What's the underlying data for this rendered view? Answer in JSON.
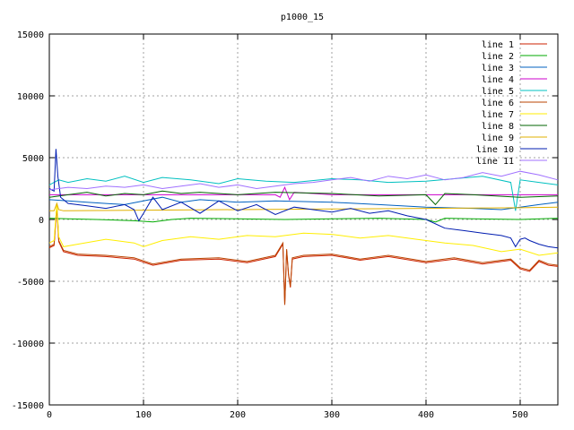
{
  "chart_data": {
    "type": "line",
    "title": "p1000_15",
    "xlabel": "",
    "ylabel": "",
    "xlim": [
      0,
      540
    ],
    "ylim": [
      -15000,
      15000
    ],
    "grid": true,
    "legend_position": "top-right",
    "x_ticks": [
      0,
      100,
      200,
      300,
      400,
      500
    ],
    "y_ticks": [
      -15000,
      -10000,
      -5000,
      0,
      5000,
      10000,
      15000
    ],
    "series": [
      {
        "name": "line 1",
        "color": "#cc2200",
        "x": [
          0,
          5,
          8,
          10,
          15,
          30,
          60,
          90,
          110,
          140,
          180,
          210,
          240,
          248,
          250,
          252,
          254,
          256,
          258,
          270,
          300,
          330,
          360,
          400,
          430,
          460,
          490,
          500,
          510,
          520,
          530,
          540
        ],
        "y": [
          -2300,
          -2100,
          1000,
          -1800,
          -2600,
          -2900,
          -3000,
          -3200,
          -3700,
          -3300,
          -3200,
          -3500,
          -3000,
          -2000,
          -6900,
          -2500,
          -4500,
          -5500,
          -3200,
          -3000,
          -2900,
          -3300,
          -3000,
          -3500,
          -3200,
          -3600,
          -3300,
          -4000,
          -4200,
          -3400,
          -3700,
          -3800
        ]
      },
      {
        "name": "line 2",
        "color": "#00aa00",
        "x": [
          0,
          20,
          50,
          90,
          110,
          130,
          150,
          200,
          250,
          300,
          350,
          400,
          410,
          420,
          450,
          500,
          540
        ],
        "y": [
          100,
          50,
          0,
          -100,
          -200,
          0,
          100,
          50,
          0,
          50,
          100,
          0,
          -200,
          100,
          50,
          0,
          100
        ]
      },
      {
        "name": "line 3",
        "color": "#0060c0",
        "x": [
          0,
          20,
          40,
          60,
          80,
          100,
          120,
          140,
          160,
          200,
          240,
          300,
          350,
          400,
          450,
          480,
          500,
          520,
          540
        ],
        "y": [
          1600,
          1500,
          1400,
          1300,
          1200,
          1500,
          1800,
          1400,
          1600,
          1400,
          1500,
          1400,
          1200,
          1000,
          900,
          800,
          1000,
          1200,
          1400
        ]
      },
      {
        "name": "line 4",
        "color": "#cc00cc",
        "x": [
          0,
          50,
          100,
          150,
          200,
          240,
          245,
          250,
          255,
          260,
          300,
          350,
          400,
          450,
          500,
          540
        ],
        "y": [
          2000,
          2000,
          2000,
          2000,
          2000,
          2000,
          1800,
          2600,
          1600,
          2200,
          2000,
          2000,
          2000,
          2000,
          2000,
          2000
        ]
      },
      {
        "name": "line 5",
        "color": "#00c0c0",
        "x": [
          0,
          10,
          20,
          40,
          60,
          80,
          100,
          120,
          150,
          180,
          200,
          230,
          260,
          300,
          330,
          360,
          400,
          430,
          460,
          490,
          495,
          500,
          520,
          540
        ],
        "y": [
          2800,
          3200,
          3000,
          3300,
          3100,
          3500,
          3000,
          3400,
          3200,
          2900,
          3300,
          3100,
          3000,
          3300,
          3200,
          3000,
          3100,
          3300,
          3500,
          3000,
          700,
          3200,
          3000,
          2800
        ]
      },
      {
        "name": "line 6",
        "color": "#bb4400",
        "x": [
          0,
          5,
          8,
          10,
          15,
          30,
          60,
          90,
          110,
          140,
          180,
          210,
          240,
          248,
          250,
          252,
          254,
          256,
          258,
          270,
          300,
          330,
          360,
          400,
          430,
          460,
          490,
          500,
          510,
          520,
          530,
          540
        ],
        "y": [
          -2200,
          -2000,
          1200,
          -1700,
          -2500,
          -2800,
          -2900,
          -3100,
          -3600,
          -3200,
          -3100,
          -3400,
          -2900,
          -1900,
          -6900,
          -2400,
          -4400,
          -5400,
          -3100,
          -2900,
          -2800,
          -3200,
          -2900,
          -3400,
          -3100,
          -3500,
          -3200,
          -3900,
          -4100,
          -3300,
          -3600,
          -3700
        ]
      },
      {
        "name": "line 7",
        "color": "#ffee00",
        "x": [
          0,
          5,
          8,
          10,
          15,
          30,
          60,
          90,
          100,
          120,
          150,
          180,
          210,
          240,
          270,
          300,
          330,
          360,
          390,
          420,
          450,
          480,
          500,
          520,
          540
        ],
        "y": [
          -1900,
          -1700,
          1300,
          -1400,
          -2200,
          -2000,
          -1600,
          -1900,
          -2200,
          -1700,
          -1400,
          -1600,
          -1300,
          -1400,
          -1100,
          -1200,
          -1500,
          -1300,
          -1600,
          -1900,
          -2100,
          -2600,
          -2400,
          -2900,
          -2700
        ]
      },
      {
        "name": "line 8",
        "color": "#006600",
        "x": [
          0,
          20,
          40,
          60,
          80,
          100,
          120,
          140,
          160,
          200,
          240,
          300,
          350,
          400,
          410,
          420,
          450,
          500,
          540
        ],
        "y": [
          1800,
          2000,
          2200,
          1900,
          2100,
          2000,
          2300,
          2100,
          2200,
          2000,
          2200,
          2100,
          1900,
          2000,
          1200,
          2100,
          2000,
          1800,
          1900
        ]
      },
      {
        "name": "line 9",
        "color": "#e0b000",
        "x": [
          0,
          5,
          8,
          10,
          15,
          100,
          200,
          300,
          400,
          500,
          540
        ],
        "y": [
          700,
          700,
          1300,
          800,
          700,
          750,
          800,
          850,
          900,
          950,
          1000
        ]
      },
      {
        "name": "line 10",
        "color": "#001cb0",
        "x": [
          0,
          5,
          7,
          9,
          12,
          20,
          40,
          60,
          80,
          90,
          95,
          100,
          110,
          120,
          140,
          160,
          180,
          200,
          220,
          240,
          260,
          280,
          300,
          320,
          340,
          360,
          380,
          400,
          420,
          440,
          460,
          480,
          490,
          495,
          500,
          505,
          510,
          520,
          530,
          540
        ],
        "y": [
          2500,
          2300,
          5700,
          3500,
          1800,
          1300,
          1100,
          900,
          1200,
          800,
          -100,
          500,
          1800,
          800,
          1400,
          500,
          1500,
          700,
          1200,
          400,
          1000,
          800,
          600,
          900,
          500,
          700,
          300,
          0,
          -700,
          -900,
          -1100,
          -1300,
          -1500,
          -2200,
          -1600,
          -1500,
          -1700,
          -2000,
          -2200,
          -2300
        ]
      },
      {
        "name": "line 11",
        "color": "#a070ff",
        "x": [
          0,
          20,
          40,
          60,
          80,
          100,
          120,
          140,
          160,
          180,
          200,
          220,
          240,
          260,
          280,
          300,
          320,
          340,
          360,
          380,
          400,
          420,
          440,
          460,
          480,
          500,
          520,
          540
        ],
        "y": [
          2400,
          2600,
          2500,
          2700,
          2600,
          2800,
          2500,
          2700,
          2900,
          2600,
          2800,
          2500,
          2700,
          2900,
          3000,
          3200,
          3400,
          3100,
          3500,
          3300,
          3600,
          3200,
          3400,
          3800,
          3500,
          3900,
          3600,
          3200
        ]
      }
    ]
  }
}
